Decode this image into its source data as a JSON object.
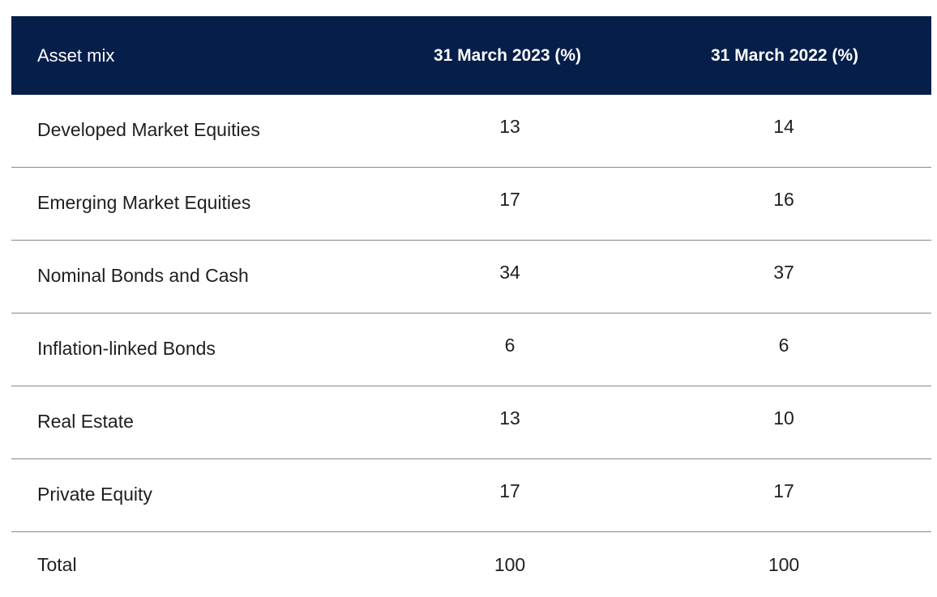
{
  "table": {
    "headers": [
      "Asset mix",
      "31 March 2023 (%)",
      "31 March 2022 (%)"
    ],
    "rows": [
      {
        "label": "Developed Market Equities",
        "y2023": "13",
        "y2022": "14"
      },
      {
        "label": "Emerging Market Equities",
        "y2023": "17",
        "y2022": "16"
      },
      {
        "label": "Nominal Bonds and Cash",
        "y2023": "34",
        "y2022": "37"
      },
      {
        "label": "Inflation-linked Bonds",
        "y2023": "6",
        "y2022": "6"
      },
      {
        "label": "Real Estate",
        "y2023": "13",
        "y2022": "10"
      },
      {
        "label": "Private Equity",
        "y2023": "17",
        "y2022": "17"
      },
      {
        "label": "Total",
        "y2023": "100",
        "y2022": "100"
      }
    ]
  },
  "colors": {
    "header_background": "#061e4a",
    "header_text": "#ffffff",
    "divider": "#8a8a8a"
  }
}
